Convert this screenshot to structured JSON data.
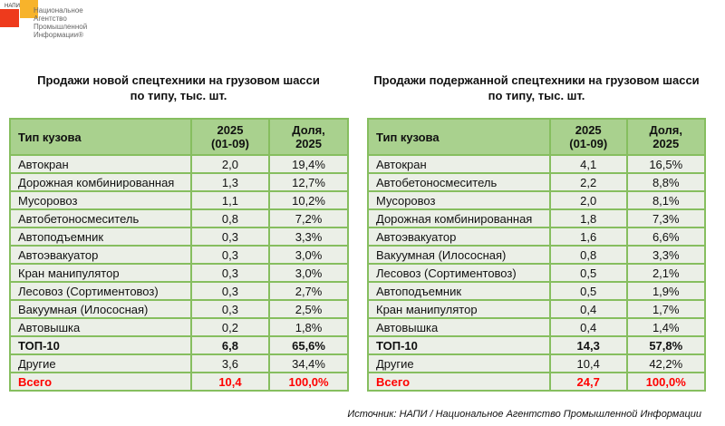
{
  "logo": {
    "abbr": "НАПИ",
    "lines": [
      "Национальное",
      "Агентство",
      "Промышленной",
      "Информации®"
    ]
  },
  "left": {
    "title_line1": "Продажи новой спецтехники на грузовом шасси",
    "title_line2": "по типу, тыс. шт.",
    "headers": [
      "Тип кузова",
      "2025\n(01-09)",
      "Доля,\n2025"
    ],
    "rows": [
      [
        "Автокран",
        "2,0",
        "19,4%"
      ],
      [
        "Дорожная комбинированная",
        "1,3",
        "12,7%"
      ],
      [
        "Мусоровоз",
        "1,1",
        "10,2%"
      ],
      [
        "Автобетоносмеситель",
        "0,8",
        "7,2%"
      ],
      [
        "Автоподъемник",
        "0,3",
        "3,3%"
      ],
      [
        "Автоэвакуатор",
        "0,3",
        "3,0%"
      ],
      [
        "Кран манипулятор",
        "0,3",
        "3,0%"
      ],
      [
        "Лесовоз (Сортиментовоз)",
        "0,3",
        "2,7%"
      ],
      [
        "Вакуумная (Илососная)",
        "0,3",
        "2,5%"
      ],
      [
        "Автовышка",
        "0,2",
        "1,8%"
      ],
      [
        "ТОП-10",
        "6,8",
        "65,6%"
      ],
      [
        "Другие",
        "3,6",
        "34,4%"
      ],
      [
        "Всего",
        "10,4",
        "100,0%"
      ]
    ]
  },
  "right": {
    "title_line1": "Продажи подержанной спецтехники на грузовом шасси",
    "title_line2": "по типу, тыс. шт.",
    "headers": [
      "Тип кузова",
      "2025\n(01-09)",
      "Доля,\n2025"
    ],
    "rows": [
      [
        "Автокран",
        "4,1",
        "16,5%"
      ],
      [
        "Автобетоносмеситель",
        "2,2",
        "8,8%"
      ],
      [
        "Мусоровоз",
        "2,0",
        "8,1%"
      ],
      [
        "Дорожная комбинированная",
        "1,8",
        "7,3%"
      ],
      [
        "Автоэвакуатор",
        "1,6",
        "6,6%"
      ],
      [
        "Вакуумная (Илососная)",
        "0,8",
        "3,3%"
      ],
      [
        "Лесовоз (Сортиментовоз)",
        "0,5",
        "2,1%"
      ],
      [
        "Автоподъемник",
        "0,5",
        "1,9%"
      ],
      [
        "Кран манипулятор",
        "0,4",
        "1,7%"
      ],
      [
        "Автовышка",
        "0,4",
        "1,4%"
      ],
      [
        "ТОП-10",
        "14,3",
        "57,8%"
      ],
      [
        "Другие",
        "10,4",
        "42,2%"
      ],
      [
        "Всего",
        "24,7",
        "100,0%"
      ]
    ]
  },
  "source": "Источник: НАПИ / Национальное Агентство Промышленной Информации",
  "colors": {
    "header": "#a9d18e",
    "border": "#86be5f",
    "row": "#ebefe7",
    "total": "#ff0000"
  }
}
